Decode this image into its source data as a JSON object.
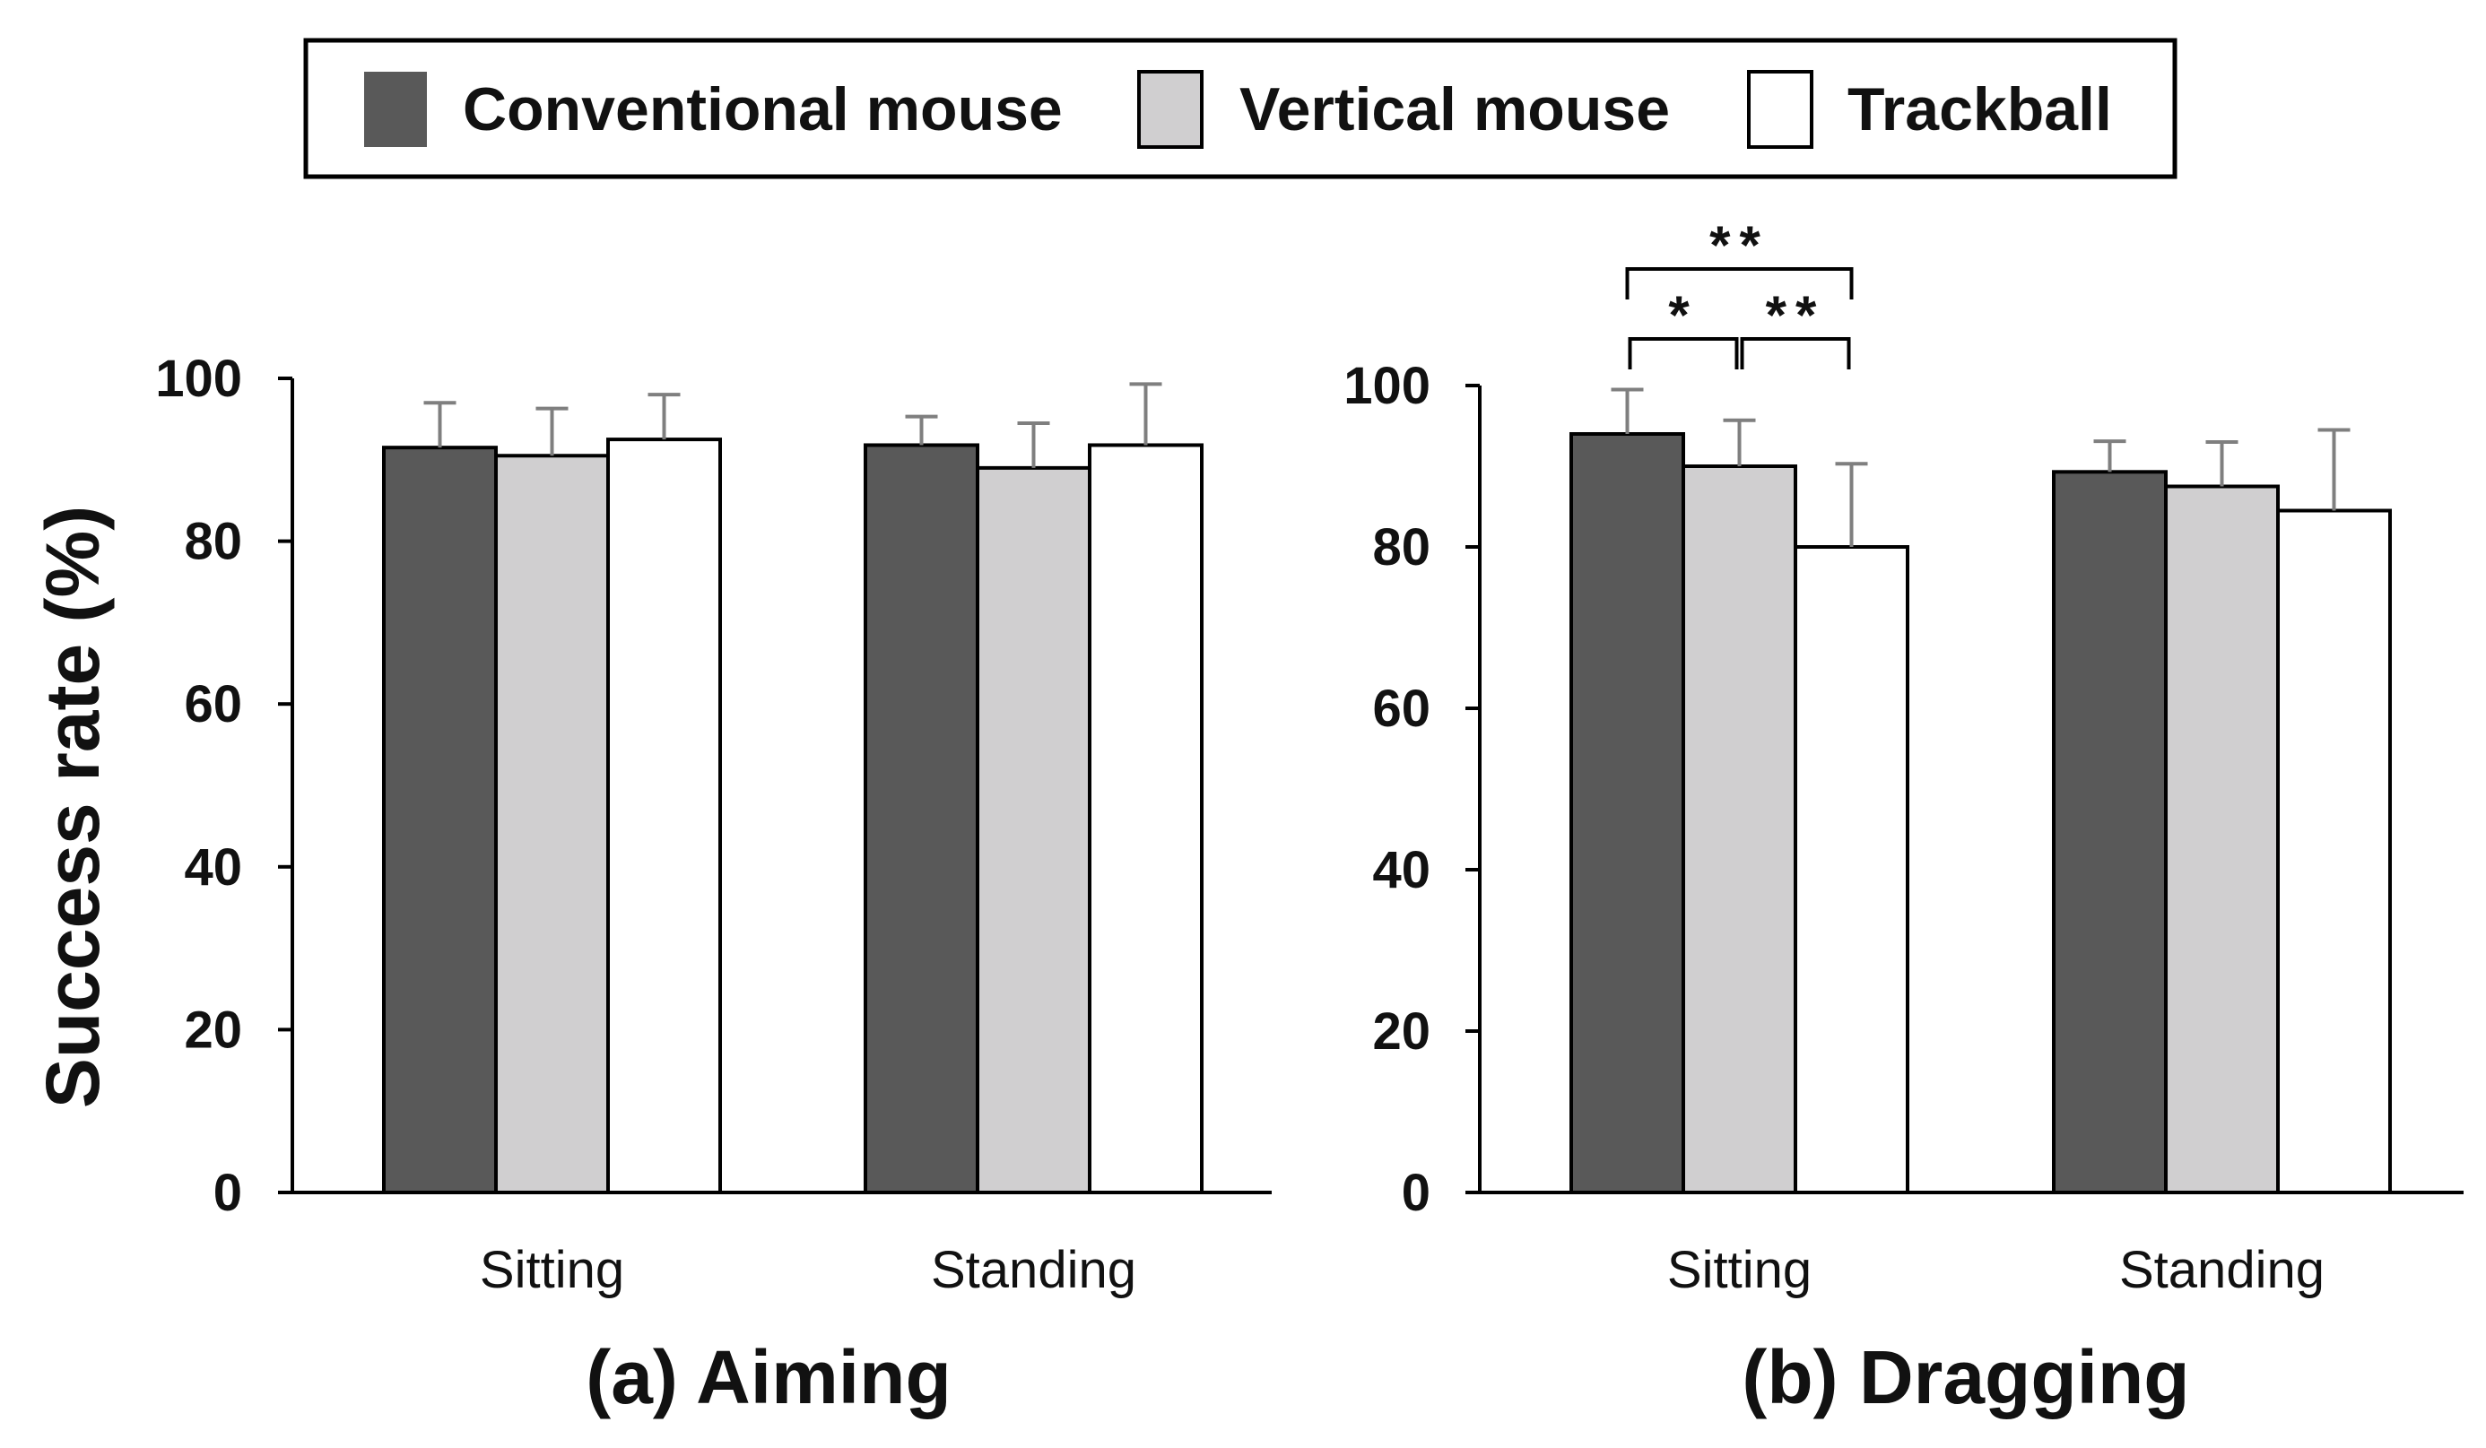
{
  "legend": {
    "items": [
      {
        "name": "Conventional mouse",
        "color": "#595959"
      },
      {
        "name": "Vertical mouse",
        "color": "#d0cfd0"
      },
      {
        "name": "Trackball",
        "color": "#ffffff"
      }
    ]
  },
  "colors": {
    "error_bar": "#7f7f7f",
    "axis": "#000000",
    "bar_stroke": "#000000"
  },
  "chart_data": [
    {
      "type": "bar",
      "title": "(a) Aiming",
      "ylabel": "Success rate (%)",
      "xlabel": "",
      "ylim": [
        0,
        100
      ],
      "yticks": [
        0,
        20,
        40,
        60,
        80,
        100
      ],
      "categories": [
        "Sitting",
        "Standing"
      ],
      "series": [
        {
          "name": "Conventional mouse",
          "values": [
            91.5,
            91.8
          ],
          "errors": [
            5.5,
            3.5
          ]
        },
        {
          "name": "Vertical mouse",
          "values": [
            90.5,
            89.0
          ],
          "errors": [
            5.8,
            5.5
          ]
        },
        {
          "name": "Trackball",
          "values": [
            92.5,
            91.8
          ],
          "errors": [
            5.5,
            7.5
          ]
        }
      ],
      "significance": []
    },
    {
      "type": "bar",
      "title": "(b) Dragging",
      "ylabel": "",
      "xlabel": "",
      "ylim": [
        0,
        100
      ],
      "yticks": [
        0,
        20,
        40,
        60,
        80,
        100
      ],
      "categories": [
        "Sitting",
        "Standing"
      ],
      "series": [
        {
          "name": "Conventional mouse",
          "values": [
            94.0,
            89.3
          ],
          "errors": [
            5.5,
            3.8
          ]
        },
        {
          "name": "Vertical mouse",
          "values": [
            90.0,
            87.5
          ],
          "errors": [
            5.7,
            5.5
          ]
        },
        {
          "name": "Trackball",
          "values": [
            80.0,
            84.5
          ],
          "errors": [
            10.3,
            10.0
          ]
        }
      ],
      "significance": [
        {
          "category": "Sitting",
          "from": "Conventional mouse",
          "to": "Vertical mouse",
          "label": "*",
          "level": 1
        },
        {
          "category": "Sitting",
          "from": "Vertical mouse",
          "to": "Trackball",
          "label": "**",
          "level": 1
        },
        {
          "category": "Sitting",
          "from": "Conventional mouse",
          "to": "Trackball",
          "label": "**",
          "level": 2
        }
      ]
    }
  ]
}
